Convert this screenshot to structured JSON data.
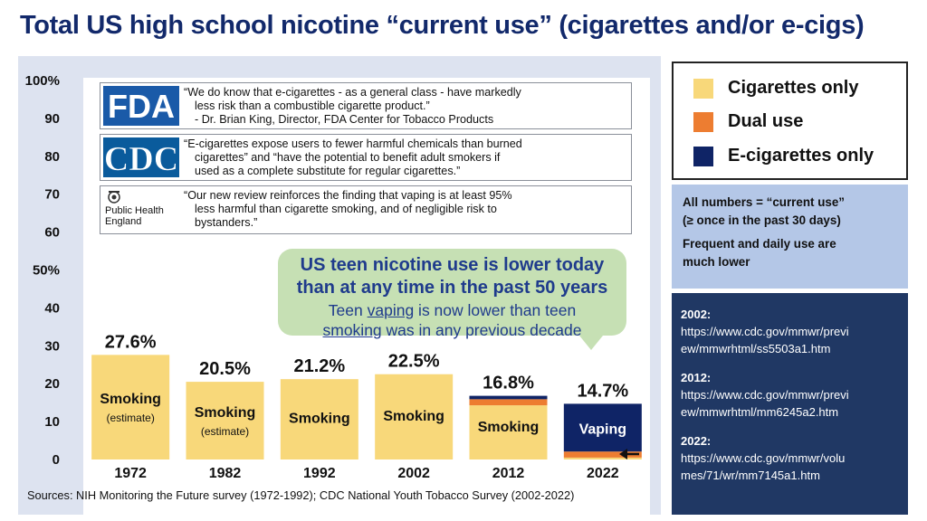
{
  "title": "Total US high school nicotine “current use” (cigarettes and/or e-cigs)",
  "chart_data": {
    "type": "bar",
    "stacked": true,
    "categories": [
      "1972",
      "1982",
      "1992",
      "2002",
      "2012",
      "2022"
    ],
    "series": [
      {
        "name": "Cigarettes only",
        "color": "#f8d87a",
        "values": [
          27.6,
          20.5,
          21.2,
          22.5,
          14.3,
          0.5
        ]
      },
      {
        "name": "Dual use",
        "color": "#ed7d31",
        "values": [
          0,
          0,
          0,
          0,
          1.6,
          1.6
        ]
      },
      {
        "name": "E-cigarettes only",
        "color": "#0f2466",
        "values": [
          0,
          0,
          0,
          0,
          0.9,
          12.6
        ]
      }
    ],
    "totals": [
      "27.6%",
      "20.5%",
      "21.2%",
      "22.5%",
      "16.8%",
      "14.7%"
    ],
    "bar_labels": [
      {
        "main": "Smoking",
        "sub": "(estimate)"
      },
      {
        "main": "Smoking",
        "sub": "(estimate)"
      },
      {
        "main": "Smoking",
        "sub": ""
      },
      {
        "main": "Smoking",
        "sub": ""
      },
      {
        "main": "Smoking",
        "sub": ""
      },
      {
        "main": "Vaping",
        "sub": ""
      }
    ],
    "ylim": [
      0,
      100
    ],
    "yticks": [
      0,
      10,
      20,
      30,
      40,
      50,
      60,
      70,
      80,
      90,
      100
    ],
    "ytick_labels": [
      "0",
      "10",
      "20",
      "30",
      "40",
      "50%",
      "60",
      "70",
      "80",
      "90",
      "100%"
    ],
    "grid": false,
    "legend": "right"
  },
  "quotes": [
    {
      "org": "FDA",
      "lines": [
        "“We do know that e-cigarettes - as a general class - have markedly",
        "less risk than a combustible cigarette product.”",
        "- Dr. Brian King, Director, FDA Center for Tobacco Products"
      ]
    },
    {
      "org": "CDC",
      "lines": [
        "“E-cigarettes expose users to fewer harmful chemicals than burned",
        "cigarettes” and “have the potential to benefit adult smokers if",
        "used as a complete substitute for regular cigarettes.”"
      ]
    },
    {
      "org_line1": "Public Health",
      "org_line2": "England",
      "lines": [
        "“Our new review reinforces the finding that vaping is at least 95%",
        "less harmful than cigarette smoking, and of negligible risk to",
        "bystanders.”"
      ]
    }
  ],
  "callout": {
    "headline_1": "US teen nicotine use is lower today",
    "headline_2": "than at any time in the past 50 years",
    "sub_1_pre": "Teen ",
    "sub_1_u": "vaping",
    "sub_1_post": " is now lower than teen",
    "sub_2_u": "smoking",
    "sub_2_post": " was in any previous decade"
  },
  "source_note": "Sources:  NIH Monitoring the Future survey (1972-1992); CDC National Youth Tobacco Survey (2002-2022)",
  "legend": [
    {
      "label": "Cigarettes only",
      "color": "#f8d87a"
    },
    {
      "label": "Dual use",
      "color": "#ed7d31"
    },
    {
      "label": "E-cigarettes only",
      "color": "#0f2466"
    }
  ],
  "note": {
    "line1": "All numbers = “current use”",
    "line2": "(≥ once in the past 30 days)",
    "line3": "Frequent and daily use are",
    "line4": "much lower"
  },
  "links": [
    {
      "year": "2002:",
      "url_1": "https://www.cdc.gov/mmwr/previ",
      "url_2": "ew/mmwrhtml/ss5503a1.htm"
    },
    {
      "year": "2012:",
      "url_1": "https://www.cdc.gov/mmwr/previ",
      "url_2": "ew/mmwrhtml/mm6245a2.htm"
    },
    {
      "year": "2022:",
      "url_1": "https://www.cdc.gov/mmwr/volu",
      "url_2": "mes/71/wr/mm7145a1.htm"
    }
  ],
  "icons": {
    "fda": "fda-logo",
    "cdc": "cdc-logo",
    "phe": "public-health-england-crest",
    "arrow": "left-arrow-icon"
  }
}
